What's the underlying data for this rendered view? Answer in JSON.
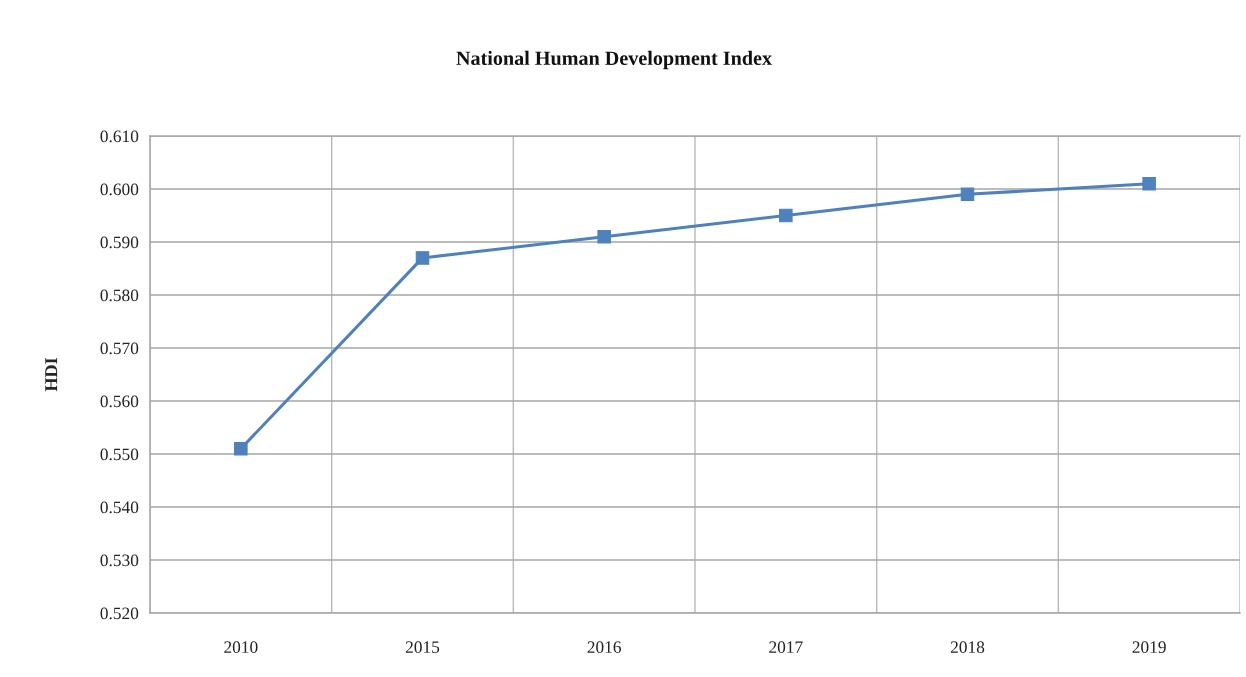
{
  "chart_data": {
    "type": "line",
    "title": "National Human Development Index",
    "ylabel": "HDI",
    "categories": [
      "2010",
      "2015",
      "2016",
      "2017",
      "2018",
      "2019"
    ],
    "values": [
      0.551,
      0.587,
      0.591,
      0.595,
      0.599,
      0.601
    ],
    "color": "#4f81bd",
    "ylim": [
      0.52,
      0.61
    ],
    "yticks": [
      {
        "value": 0.52,
        "label": "0.520"
      },
      {
        "value": 0.53,
        "label": "0.530"
      },
      {
        "value": 0.54,
        "label": "0.540"
      },
      {
        "value": 0.55,
        "label": "0.550"
      },
      {
        "value": 0.56,
        "label": "0.560"
      },
      {
        "value": 0.57,
        "label": "0.570"
      },
      {
        "value": 0.58,
        "label": "0.580"
      },
      {
        "value": 0.59,
        "label": "0.590"
      },
      {
        "value": 0.6,
        "label": "0.600"
      },
      {
        "value": 0.61,
        "label": "0.610"
      }
    ],
    "grid": true,
    "marker": "square",
    "line_style": "solid"
  }
}
